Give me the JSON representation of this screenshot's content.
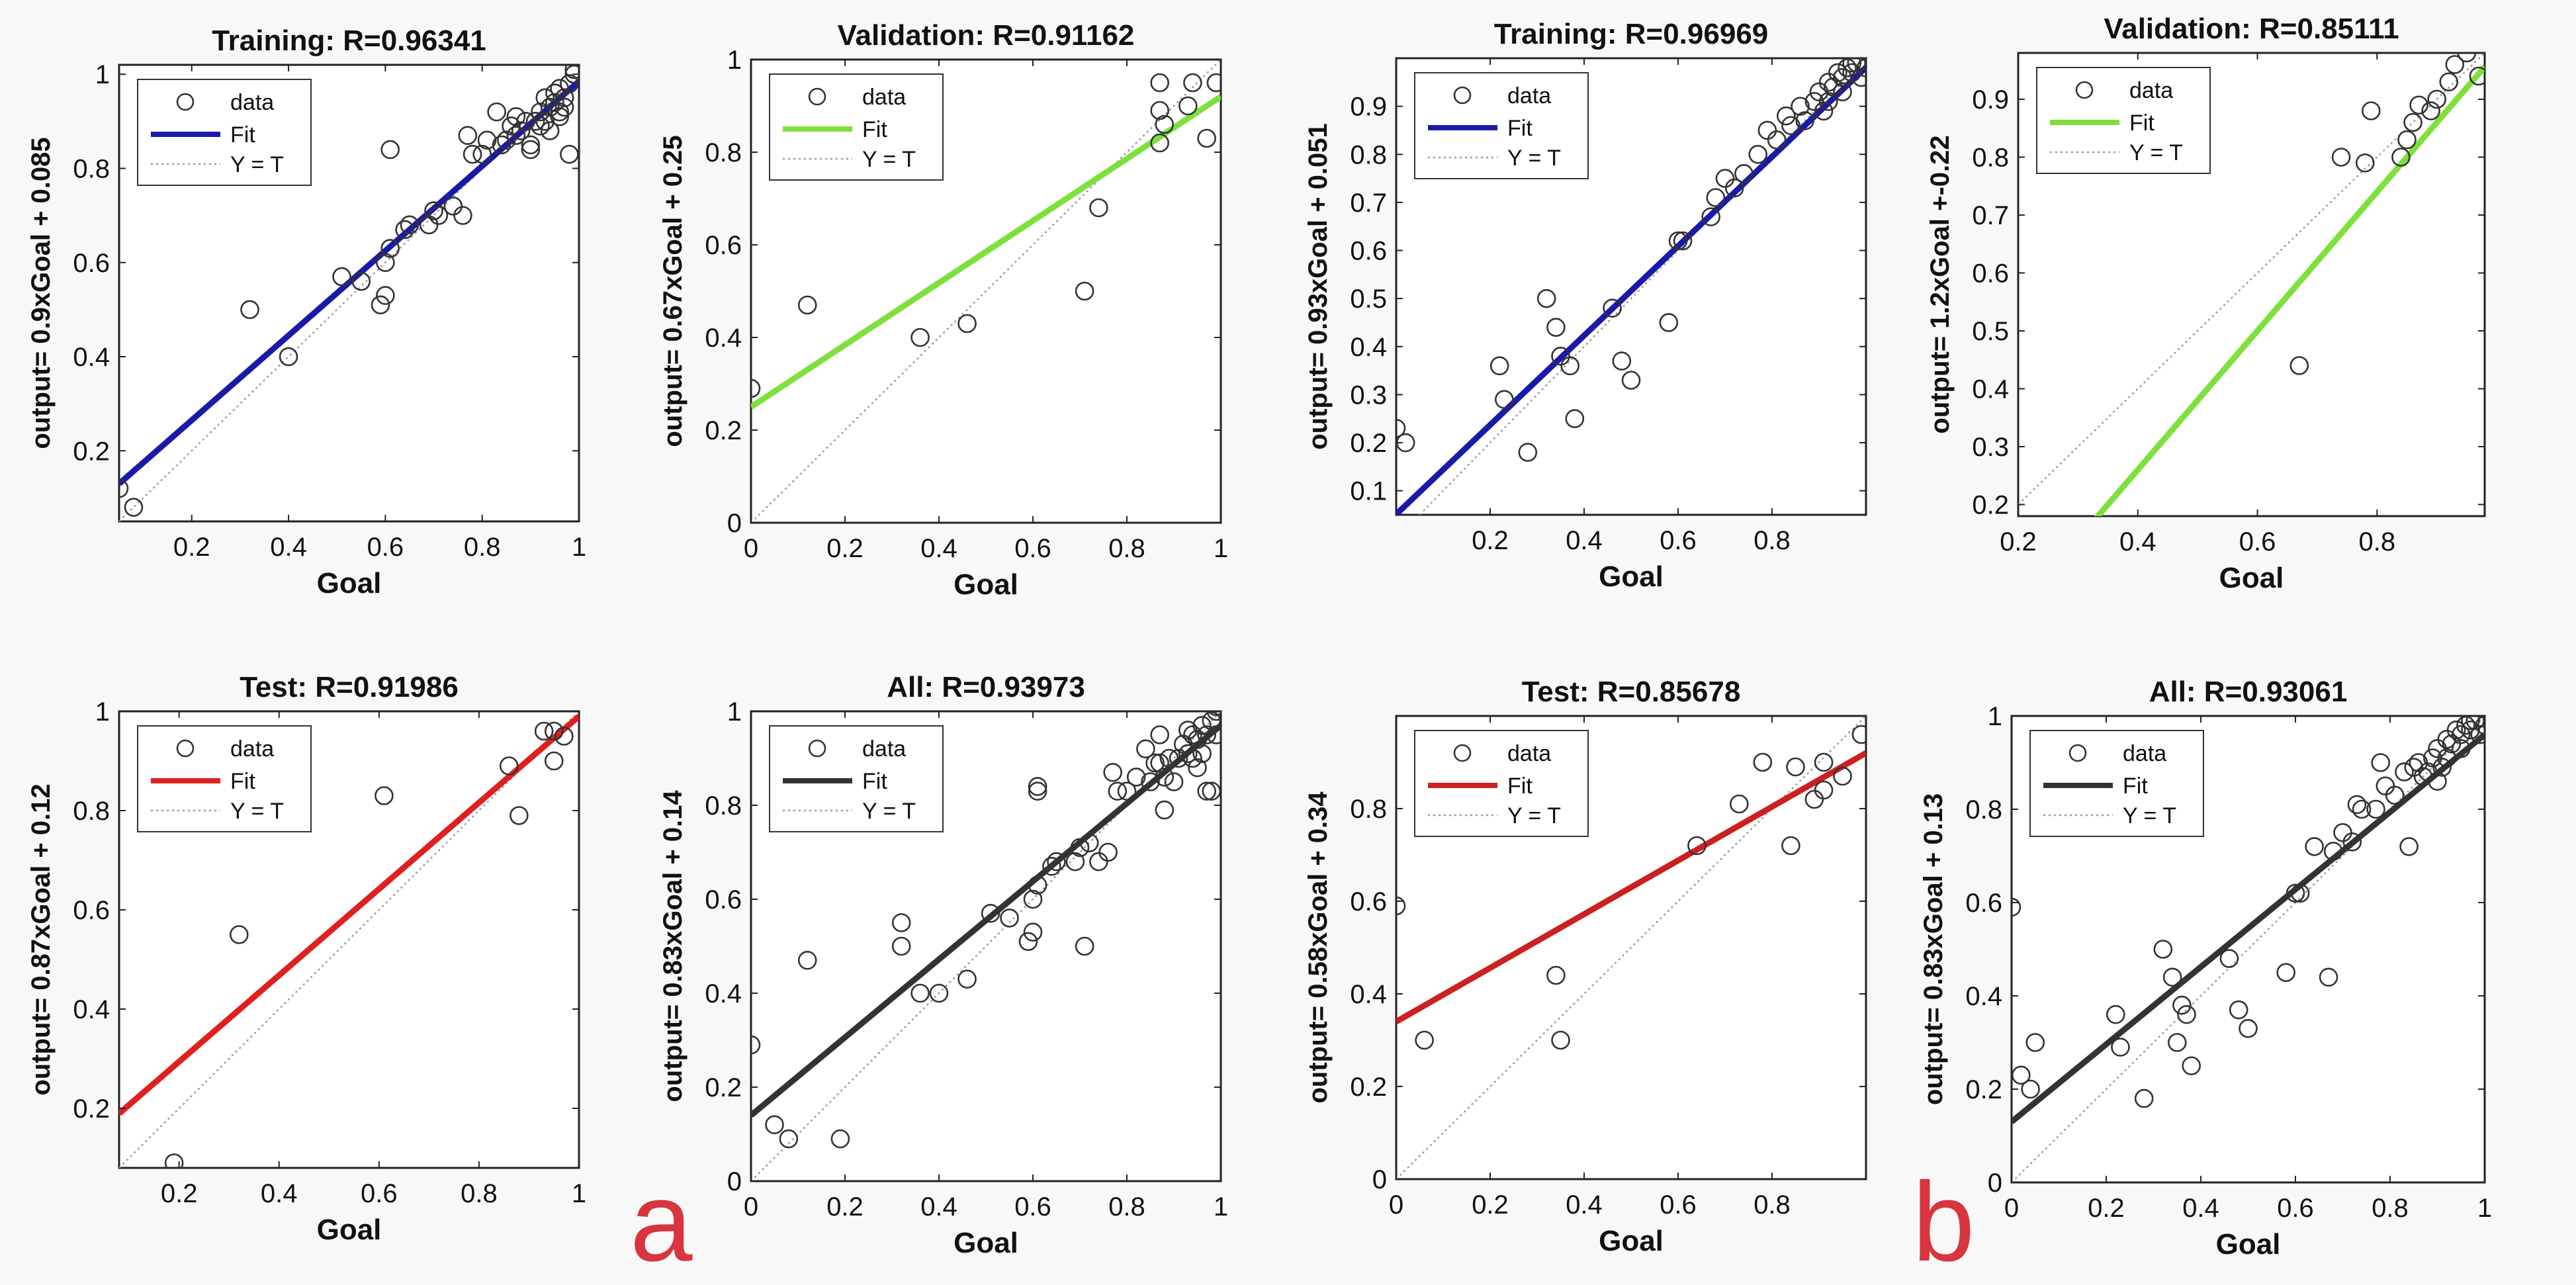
{
  "figure": {
    "labels": [
      "a",
      "b"
    ],
    "colors": {
      "background": "#f8f8f8",
      "label": "#d8353f",
      "marker": "#333333",
      "identity": "#9a9a9a"
    }
  },
  "legend": {
    "data": "data",
    "fit": "Fit",
    "identity": "Y = T"
  },
  "chart_data": [
    {
      "type": "scatter",
      "title": "Training: R=0.96341",
      "xlabel": "Goal",
      "ylabel": "output= 0.9xGoal + 0.085",
      "xlim": [
        0.05,
        1.0
      ],
      "ylim": [
        0.05,
        1.02
      ],
      "xticks": [
        0.2,
        0.4,
        0.6,
        0.8,
        1
      ],
      "xticklabels": [
        "0.2",
        "0.4",
        "0.6",
        "0.8",
        "1"
      ],
      "yticks": [
        0.2,
        0.4,
        0.6,
        0.8,
        1
      ],
      "yticklabels": [
        "0.2",
        "0.4",
        "0.6",
        "0.8",
        "1"
      ],
      "fit": {
        "slope": 0.9,
        "intercept": 0.085,
        "color": "#1a1aaa"
      },
      "points": [
        [
          0.05,
          0.12
        ],
        [
          0.08,
          0.08
        ],
        [
          0.32,
          0.5
        ],
        [
          0.4,
          0.4
        ],
        [
          0.51,
          0.57
        ],
        [
          0.55,
          0.56
        ],
        [
          0.59,
          0.51
        ],
        [
          0.6,
          0.53
        ],
        [
          0.6,
          0.6
        ],
        [
          0.61,
          0.84
        ],
        [
          0.61,
          0.63
        ],
        [
          0.64,
          0.67
        ],
        [
          0.65,
          0.68
        ],
        [
          0.69,
          0.68
        ],
        [
          0.7,
          0.71
        ],
        [
          0.71,
          0.7
        ],
        [
          0.74,
          0.72
        ],
        [
          0.76,
          0.7
        ],
        [
          0.77,
          0.87
        ],
        [
          0.78,
          0.83
        ],
        [
          0.8,
          0.83
        ],
        [
          0.81,
          0.86
        ],
        [
          0.83,
          0.92
        ],
        [
          0.84,
          0.85
        ],
        [
          0.85,
          0.86
        ],
        [
          0.86,
          0.89
        ],
        [
          0.87,
          0.91
        ],
        [
          0.87,
          0.87
        ],
        [
          0.88,
          0.88
        ],
        [
          0.89,
          0.9
        ],
        [
          0.9,
          0.85
        ],
        [
          0.9,
          0.84
        ],
        [
          0.91,
          0.9
        ],
        [
          0.92,
          0.92
        ],
        [
          0.93,
          0.95
        ],
        [
          0.93,
          0.9
        ],
        [
          0.94,
          0.93
        ],
        [
          0.94,
          0.88
        ],
        [
          0.95,
          0.96
        ],
        [
          0.95,
          0.94
        ],
        [
          0.96,
          0.91
        ],
        [
          0.96,
          0.97
        ],
        [
          0.97,
          0.93
        ],
        [
          0.97,
          0.95
        ],
        [
          0.98,
          0.98
        ],
        [
          0.98,
          0.83
        ],
        [
          0.99,
          1.0
        ],
        [
          0.99,
          1.01
        ],
        [
          0.96,
          0.92
        ],
        [
          0.92,
          0.89
        ]
      ]
    },
    {
      "type": "scatter",
      "title": "Validation: R=0.91162",
      "xlabel": "Goal",
      "ylabel": "output= 0.67xGoal + 0.25",
      "xlim": [
        0,
        1.0
      ],
      "ylim": [
        0,
        1.0
      ],
      "xticks": [
        0,
        0.2,
        0.4,
        0.6,
        0.8,
        1
      ],
      "xticklabels": [
        "0",
        "0.2",
        "0.4",
        "0.6",
        "0.8",
        "1"
      ],
      "yticks": [
        0,
        0.2,
        0.4,
        0.6,
        0.8,
        1
      ],
      "yticklabels": [
        "0",
        "0.2",
        "0.4",
        "0.6",
        "0.8",
        "1"
      ],
      "fit": {
        "slope": 0.67,
        "intercept": 0.25,
        "color": "#7ee03c"
      },
      "points": [
        [
          0.0,
          0.29
        ],
        [
          0.12,
          0.47
        ],
        [
          0.36,
          0.4
        ],
        [
          0.46,
          0.43
        ],
        [
          0.71,
          0.5
        ],
        [
          0.74,
          0.68
        ],
        [
          0.87,
          0.82
        ],
        [
          0.87,
          0.95
        ],
        [
          0.87,
          0.89
        ],
        [
          0.88,
          0.86
        ],
        [
          0.93,
          0.9
        ],
        [
          0.94,
          0.95
        ],
        [
          0.97,
          0.83
        ],
        [
          0.99,
          0.95
        ]
      ]
    },
    {
      "type": "scatter",
      "title": "Training: R=0.96969",
      "xlabel": "Goal",
      "ylabel": "output= 0.93xGoal + 0.051",
      "xlim": [
        0,
        1.0
      ],
      "ylim": [
        0.05,
        1.0
      ],
      "xticks": [
        0.2,
        0.4,
        0.6,
        0.8
      ],
      "xticklabels": [
        "0.2",
        "0.4",
        "0.6",
        "0.8"
      ],
      "yticks": [
        0.1,
        0.2,
        0.3,
        0.4,
        0.5,
        0.6,
        0.7,
        0.8,
        0.9
      ],
      "yticklabels": [
        "0.1",
        "0.2",
        "0.3",
        "0.4",
        "0.5",
        "0.6",
        "0.7",
        "0.8",
        "0.9"
      ],
      "fit": {
        "slope": 0.93,
        "intercept": 0.051,
        "color": "#1a1aaa"
      },
      "points": [
        [
          0.0,
          0.23
        ],
        [
          0.02,
          0.2
        ],
        [
          0.22,
          0.36
        ],
        [
          0.23,
          0.29
        ],
        [
          0.28,
          0.18
        ],
        [
          0.32,
          0.5
        ],
        [
          0.34,
          0.44
        ],
        [
          0.35,
          0.38
        ],
        [
          0.37,
          0.36
        ],
        [
          0.38,
          0.25
        ],
        [
          0.46,
          0.48
        ],
        [
          0.48,
          0.37
        ],
        [
          0.5,
          0.33
        ],
        [
          0.58,
          0.45
        ],
        [
          0.6,
          0.62
        ],
        [
          0.61,
          0.62
        ],
        [
          0.67,
          0.67
        ],
        [
          0.68,
          0.71
        ],
        [
          0.7,
          0.75
        ],
        [
          0.72,
          0.73
        ],
        [
          0.74,
          0.76
        ],
        [
          0.77,
          0.8
        ],
        [
          0.79,
          0.85
        ],
        [
          0.81,
          0.83
        ],
        [
          0.83,
          0.88
        ],
        [
          0.84,
          0.86
        ],
        [
          0.86,
          0.9
        ],
        [
          0.87,
          0.87
        ],
        [
          0.89,
          0.91
        ],
        [
          0.9,
          0.93
        ],
        [
          0.91,
          0.89
        ],
        [
          0.92,
          0.95
        ],
        [
          0.93,
          0.94
        ],
        [
          0.94,
          0.97
        ],
        [
          0.95,
          0.96
        ],
        [
          0.96,
          0.98
        ],
        [
          0.97,
          0.99
        ],
        [
          0.97,
          0.97
        ],
        [
          0.98,
          0.99
        ],
        [
          0.99,
          0.96
        ],
        [
          1.0,
          0.98
        ],
        [
          0.95,
          0.93
        ],
        [
          0.92,
          0.91
        ]
      ]
    },
    {
      "type": "scatter",
      "title": "Validation: R=0.85111",
      "xlabel": "Goal",
      "ylabel": "output= 1.2xGoal +-0.22",
      "xlim": [
        0.2,
        0.98
      ],
      "ylim": [
        0.18,
        0.98
      ],
      "xticks": [
        0.2,
        0.4,
        0.6,
        0.8
      ],
      "xticklabels": [
        "0.2",
        "0.4",
        "0.6",
        "0.8"
      ],
      "yticks": [
        0.2,
        0.3,
        0.4,
        0.5,
        0.6,
        0.7,
        0.8,
        0.9
      ],
      "yticklabels": [
        "0.2",
        "0.3",
        "0.4",
        "0.5",
        "0.6",
        "0.7",
        "0.8",
        "0.9"
      ],
      "fit": {
        "slope": 1.2,
        "intercept": -0.22,
        "color": "#7ee03c"
      },
      "points": [
        [
          0.67,
          0.44
        ],
        [
          0.74,
          0.8
        ],
        [
          0.78,
          0.79
        ],
        [
          0.79,
          0.88
        ],
        [
          0.84,
          0.8
        ],
        [
          0.85,
          0.83
        ],
        [
          0.86,
          0.86
        ],
        [
          0.87,
          0.89
        ],
        [
          0.89,
          0.88
        ],
        [
          0.9,
          0.9
        ],
        [
          0.92,
          0.93
        ],
        [
          0.93,
          0.96
        ],
        [
          0.95,
          0.98
        ],
        [
          0.97,
          0.94
        ]
      ]
    },
    {
      "type": "scatter",
      "title": "Test: R=0.91986",
      "xlabel": "Goal",
      "ylabel": "output= 0.87xGoal + 0.12",
      "xlim": [
        0.08,
        1.0
      ],
      "ylim": [
        0.08,
        1.0
      ],
      "xticks": [
        0.2,
        0.4,
        0.6,
        0.8,
        1
      ],
      "xticklabels": [
        "0.2",
        "0.4",
        "0.6",
        "0.8",
        "1"
      ],
      "yticks": [
        0.2,
        0.4,
        0.6,
        0.8,
        1
      ],
      "yticklabels": [
        "0.2",
        "0.4",
        "0.6",
        "0.8",
        "1"
      ],
      "fit": {
        "slope": 0.87,
        "intercept": 0.12,
        "color": "#e02020"
      },
      "points": [
        [
          0.19,
          0.09
        ],
        [
          0.32,
          0.55
        ],
        [
          0.61,
          0.83
        ],
        [
          0.86,
          0.89
        ],
        [
          0.88,
          0.79
        ],
        [
          0.93,
          0.96
        ],
        [
          0.95,
          0.96
        ],
        [
          0.95,
          0.9
        ],
        [
          0.97,
          0.95
        ]
      ]
    },
    {
      "type": "scatter",
      "title": "All: R=0.93973",
      "xlabel": "Goal",
      "ylabel": "output= 0.83xGoal + 0.14",
      "xlim": [
        0,
        1.0
      ],
      "ylim": [
        0,
        1.0
      ],
      "xticks": [
        0,
        0.2,
        0.4,
        0.6,
        0.8,
        1
      ],
      "xticklabels": [
        "0",
        "0.2",
        "0.4",
        "0.6",
        "0.8",
        "1"
      ],
      "yticks": [
        0,
        0.2,
        0.4,
        0.6,
        0.8,
        1
      ],
      "yticklabels": [
        "0",
        "0.2",
        "0.4",
        "0.6",
        "0.8",
        "1"
      ],
      "fit": {
        "slope": 0.83,
        "intercept": 0.14,
        "color": "#333333"
      },
      "points": [
        [
          0.0,
          0.29
        ],
        [
          0.05,
          0.12
        ],
        [
          0.08,
          0.09
        ],
        [
          0.12,
          0.47
        ],
        [
          0.19,
          0.09
        ],
        [
          0.32,
          0.55
        ],
        [
          0.32,
          0.5
        ],
        [
          0.36,
          0.4
        ],
        [
          0.4,
          0.4
        ],
        [
          0.46,
          0.43
        ],
        [
          0.51,
          0.57
        ],
        [
          0.55,
          0.56
        ],
        [
          0.59,
          0.51
        ],
        [
          0.6,
          0.53
        ],
        [
          0.6,
          0.6
        ],
        [
          0.61,
          0.84
        ],
        [
          0.61,
          0.83
        ],
        [
          0.61,
          0.63
        ],
        [
          0.64,
          0.67
        ],
        [
          0.65,
          0.68
        ],
        [
          0.69,
          0.68
        ],
        [
          0.7,
          0.71
        ],
        [
          0.71,
          0.5
        ],
        [
          0.72,
          0.72
        ],
        [
          0.74,
          0.68
        ],
        [
          0.76,
          0.7
        ],
        [
          0.77,
          0.87
        ],
        [
          0.78,
          0.83
        ],
        [
          0.8,
          0.83
        ],
        [
          0.82,
          0.86
        ],
        [
          0.84,
          0.92
        ],
        [
          0.85,
          0.85
        ],
        [
          0.86,
          0.89
        ],
        [
          0.87,
          0.95
        ],
        [
          0.87,
          0.89
        ],
        [
          0.88,
          0.79
        ],
        [
          0.88,
          0.86
        ],
        [
          0.89,
          0.9
        ],
        [
          0.9,
          0.85
        ],
        [
          0.91,
          0.9
        ],
        [
          0.92,
          0.93
        ],
        [
          0.93,
          0.96
        ],
        [
          0.94,
          0.9
        ],
        [
          0.94,
          0.95
        ],
        [
          0.95,
          0.94
        ],
        [
          0.95,
          0.88
        ],
        [
          0.96,
          0.91
        ],
        [
          0.96,
          0.97
        ],
        [
          0.97,
          0.83
        ],
        [
          0.97,
          0.95
        ],
        [
          0.98,
          0.98
        ],
        [
          0.98,
          0.83
        ],
        [
          0.99,
          1.0
        ],
        [
          0.99,
          1.01
        ],
        [
          0.99,
          0.95
        ],
        [
          0.93,
          0.91
        ]
      ]
    },
    {
      "type": "scatter",
      "title": "Test: R=0.85678",
      "xlabel": "Goal",
      "ylabel": "output= 0.58xGoal + 0.34",
      "xlim": [
        0,
        1.0
      ],
      "ylim": [
        0,
        1.0
      ],
      "xticks": [
        0,
        0.2,
        0.4,
        0.6,
        0.8
      ],
      "xticklabels": [
        "0",
        "0.2",
        "0.4",
        "0.6",
        "0.8"
      ],
      "yticks": [
        0,
        0.2,
        0.4,
        0.6,
        0.8
      ],
      "yticklabels": [
        "0",
        "0.2",
        "0.4",
        "0.6",
        "0.8"
      ],
      "fit": {
        "slope": 0.58,
        "intercept": 0.34,
        "color": "#cc2020"
      },
      "points": [
        [
          0.0,
          0.59
        ],
        [
          0.06,
          0.3
        ],
        [
          0.34,
          0.44
        ],
        [
          0.35,
          0.3
        ],
        [
          0.64,
          0.72
        ],
        [
          0.73,
          0.81
        ],
        [
          0.78,
          0.9
        ],
        [
          0.84,
          0.72
        ],
        [
          0.85,
          0.89
        ],
        [
          0.89,
          0.82
        ],
        [
          0.91,
          0.9
        ],
        [
          0.91,
          0.84
        ],
        [
          0.95,
          0.87
        ],
        [
          0.99,
          0.96
        ]
      ]
    },
    {
      "type": "scatter",
      "title": "All: R=0.93061",
      "xlabel": "Goal",
      "ylabel": "output= 0.83xGoal + 0.13",
      "xlim": [
        0,
        1.0
      ],
      "ylim": [
        0,
        1.0
      ],
      "xticks": [
        0,
        0.2,
        0.4,
        0.6,
        0.8,
        1
      ],
      "xticklabels": [
        "0",
        "0.2",
        "0.4",
        "0.6",
        "0.8",
        "1"
      ],
      "yticks": [
        0,
        0.2,
        0.4,
        0.6,
        0.8,
        1
      ],
      "yticklabels": [
        "0",
        "0.2",
        "0.4",
        "0.6",
        "0.8",
        "1"
      ],
      "fit": {
        "slope": 0.83,
        "intercept": 0.13,
        "color": "#333333"
      },
      "points": [
        [
          0.0,
          0.59
        ],
        [
          0.02,
          0.23
        ],
        [
          0.04,
          0.2
        ],
        [
          0.05,
          0.3
        ],
        [
          0.22,
          0.36
        ],
        [
          0.23,
          0.29
        ],
        [
          0.28,
          0.18
        ],
        [
          0.32,
          0.5
        ],
        [
          0.34,
          0.44
        ],
        [
          0.35,
          0.3
        ],
        [
          0.36,
          0.38
        ],
        [
          0.37,
          0.36
        ],
        [
          0.38,
          0.25
        ],
        [
          0.46,
          0.48
        ],
        [
          0.48,
          0.37
        ],
        [
          0.5,
          0.33
        ],
        [
          0.58,
          0.45
        ],
        [
          0.6,
          0.62
        ],
        [
          0.61,
          0.62
        ],
        [
          0.64,
          0.72
        ],
        [
          0.67,
          0.44
        ],
        [
          0.68,
          0.71
        ],
        [
          0.7,
          0.75
        ],
        [
          0.72,
          0.73
        ],
        [
          0.73,
          0.81
        ],
        [
          0.74,
          0.8
        ],
        [
          0.77,
          0.8
        ],
        [
          0.78,
          0.9
        ],
        [
          0.79,
          0.85
        ],
        [
          0.81,
          0.83
        ],
        [
          0.83,
          0.88
        ],
        [
          0.84,
          0.72
        ],
        [
          0.85,
          0.89
        ],
        [
          0.86,
          0.9
        ],
        [
          0.87,
          0.87
        ],
        [
          0.88,
          0.88
        ],
        [
          0.89,
          0.91
        ],
        [
          0.9,
          0.93
        ],
        [
          0.91,
          0.89
        ],
        [
          0.92,
          0.95
        ],
        [
          0.93,
          0.94
        ],
        [
          0.94,
          0.97
        ],
        [
          0.95,
          0.96
        ],
        [
          0.96,
          0.98
        ],
        [
          0.97,
          0.99
        ],
        [
          0.97,
          0.97
        ],
        [
          0.98,
          0.99
        ],
        [
          0.99,
          0.96
        ],
        [
          1.0,
          0.98
        ],
        [
          0.95,
          0.93
        ],
        [
          0.92,
          0.91
        ],
        [
          0.9,
          0.86
        ]
      ]
    }
  ]
}
